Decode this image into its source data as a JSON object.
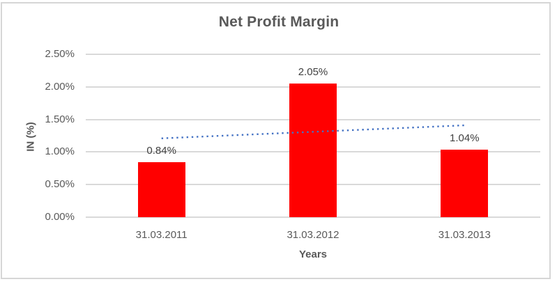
{
  "chart_data": {
    "type": "bar",
    "title": "Net Profit Margin",
    "xlabel": "Years",
    "ylabel": "IN (%)",
    "categories": [
      "31.03.2011",
      "31.03.2012",
      "31.03.2013"
    ],
    "values": [
      0.84,
      2.05,
      1.04
    ],
    "data_labels": [
      "0.84%",
      "2.05%",
      "1.04%"
    ],
    "y_ticks": [
      "2.50%",
      "2.00%",
      "1.50%",
      "1.00%",
      "0.50%",
      "0.00%"
    ],
    "ylim": [
      0,
      2.5
    ],
    "grid": true,
    "legend": false,
    "bar_color": "#ff0000",
    "gridline_color": "#d9d9d9",
    "text_color": "#595959",
    "trendline": {
      "type": "linear",
      "style": "dotted",
      "color": "#4472c4",
      "start_value": 1.21,
      "end_value": 1.41
    }
  }
}
